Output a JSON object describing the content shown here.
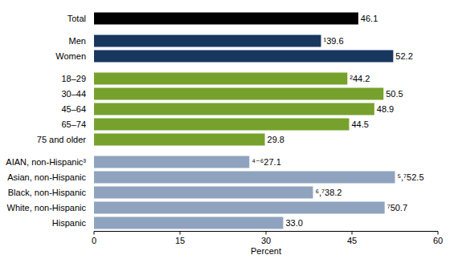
{
  "chart_data": {
    "type": "bar",
    "orientation": "horizontal",
    "xlabel": "Percent",
    "categories": [
      "Total",
      null,
      "Men",
      "Women",
      null,
      "18–29",
      "30–44",
      "45–64",
      "65–74",
      "75 and older",
      null,
      "AIAN, non-Hispanic³",
      "Asian, non-Hispanic",
      "Black, non-Hispanic",
      "White, non-Hispanic",
      "Hispanic"
    ],
    "values": [
      46.1,
      null,
      39.6,
      52.2,
      null,
      44.2,
      50.5,
      48.9,
      44.5,
      29.8,
      null,
      27.1,
      52.5,
      38.2,
      50.7,
      33.0
    ],
    "value_labels": [
      "46.1",
      null,
      "¹39.6",
      "52.2",
      null,
      "²44.2",
      "50.5",
      "48.9",
      "44.5",
      "29.8",
      null,
      "⁴⁻⁶27.1",
      "⁵,⁷52.5",
      "⁶,⁷38.2",
      "⁷50.7",
      "33.0"
    ],
    "colors": [
      "#000000",
      null,
      "#17375e",
      "#17375e",
      null,
      "#76a12d",
      "#76a12d",
      "#76a12d",
      "#76a12d",
      "#76a12d",
      null,
      "#8fa3bf",
      "#8fa3bf",
      "#8fa3bf",
      "#8fa3bf",
      "#8fa3bf"
    ],
    "xlim": [
      0,
      60
    ],
    "xticks": [
      0,
      15,
      30,
      45,
      60
    ],
    "data_labels": true,
    "grid": false
  }
}
